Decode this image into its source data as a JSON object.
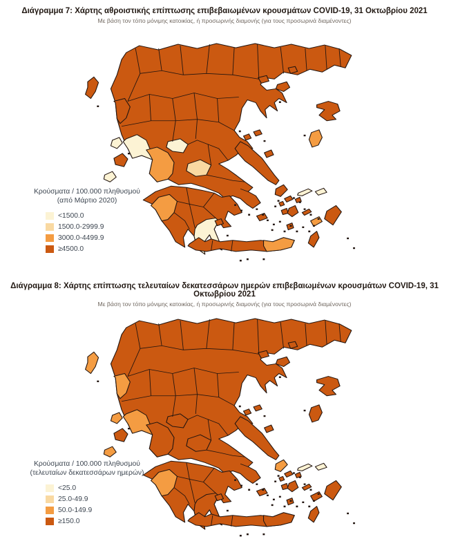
{
  "page": {
    "background": "#ffffff"
  },
  "palette": {
    "c1": "#FCF3D4",
    "c2": "#F9D9A2",
    "c3": "#F49C42",
    "c4": "#CB5911",
    "map_border": "#221510",
    "title_color": "#211812",
    "subtitle_color": "#6e655d",
    "legend_text_color": "#3c4550"
  },
  "sections": [
    {
      "id": "diagram7",
      "title": "Διάγραμμα 7: Χάρτης αθροιστικής επίπτωσης επιβεβαιωμένων κρουσμάτων COVID-19, 31 Οκτωβρίου 2021",
      "subtitle": "Με βάση τον τόπο μόνιμης κατοικίας, ή προσωρινής διαμονής (για τους προσωρινά διαμένοντες)",
      "legend": {
        "heading_line1": "Κρούσματα / 100.000 πληθυσμού",
        "heading_line2": "(από Μάρτιο 2020)",
        "items": [
          {
            "label": "<1500.0",
            "category": "c1"
          },
          {
            "label": "1500.0-2999.9",
            "category": "c2"
          },
          {
            "label": "3000.0-4499.9",
            "category": "c3"
          },
          {
            "label": "≥4500.0",
            "category": "c4"
          }
        ]
      },
      "default_category": "c4",
      "region_overrides": {
        "preveza-arta": "c1",
        "evrytania": "c1",
        "laconia": "c1",
        "lefkada": "c1",
        "zakynthos": "c1",
        "samos": "c1",
        "ikaria": "c1",
        "aitoloakarnania": "c3",
        "phocis": "c2",
        "ilia": "c3",
        "chios": "c3",
        "crete-east": "c3",
        "kos-kalymnos": "c3"
      }
    },
    {
      "id": "diagram8",
      "title": "Διάγραμμα 8: Χάρτης επίπτωσης τελευταίων δεκατεσσάρων ημερών επιβεβαιωμένων κρουσμάτων COVID-19, 31 Οκτωβρίου 2021",
      "subtitle": "Με βάση τον τόπο μόνιμης κατοικίας, ή προσωρινής διαμονής (για τους προσωρινά διαμένοντες)",
      "legend": {
        "heading_line1": "Κρούσματα / 100.000 πληθυσμού",
        "heading_line2": "(τελευταίων δεκατεσσάρων ημερών)",
        "items": [
          {
            "label": "<25.0",
            "category": "c1"
          },
          {
            "label": "25.0-49.9",
            "category": "c2"
          },
          {
            "label": "50.0-149.9",
            "category": "c3"
          },
          {
            "label": "≥150.0",
            "category": "c4"
          }
        ]
      },
      "default_category": "c4",
      "region_overrides": {
        "thesprotia": "c3",
        "preveza-arta": "c3",
        "corfu": "c3",
        "lefkada": "c3",
        "zakynthos": "c3",
        "ilia": "c3",
        "andros": "c3",
        "samos": "c1",
        "ikaria": "c1"
      }
    }
  ],
  "chart_data": [
    {
      "type": "heatmap",
      "subtype": "choropleth-map-of-greece",
      "title": "Διάγραμμα 7: Χάρτης αθροιστικής επίπτωσης επιβεβαιωμένων κρουσμάτων COVID-19, 31 Οκτωβρίου 2021",
      "subtitle": "Με βάση τον τόπο μόνιμης κατοικίας, ή προσωρινής διαμονής (για τους προσωρινά διαμένοντες)",
      "legend_title": "Κρούσματα / 100.000 πληθυσμού (από Μάρτιο 2020)",
      "classes": [
        {
          "range": "<1500.0",
          "color": "#FCF3D4"
        },
        {
          "range": "1500.0-2999.9",
          "color": "#F9D9A2"
        },
        {
          "range": "3000.0-4499.9",
          "color": "#F49C42"
        },
        {
          "range": "≥4500.0",
          "color": "#CB5911"
        }
      ],
      "legend_position": "lower-left",
      "reading": "Most regional units of Greece (north, Attica, most islands, western Crete) are in the highest class ≥4500.0; Preveza/Arta, Evrytania, Laconia, Lefkada, Zakynthos, Samos and Ikaria are in the lowest class <1500.0; Aitoloakarnania, Ilia, Chios, eastern Crete (Lasithi) and Kos/Kalymnos are 3000.0-4499.9."
    },
    {
      "type": "heatmap",
      "subtype": "choropleth-map-of-greece",
      "title": "Διάγραμμα 8: Χάρτης επίπτωσης τελευταίων δεκατεσσάρων ημερών επιβεβαιωμένων κρουσμάτων COVID-19, 31 Οκτωβρίου 2021",
      "subtitle": "Με βάση τον τόπο μόνιμης κατοικίας, ή προσωρινής διαμονής (για τους προσωρινά διαμένοντες)",
      "legend_title": "Κρούσματα / 100.000 πληθυσμού (τελευταίων δεκατεσσάρων ημερών)",
      "classes": [
        {
          "range": "<25.0",
          "color": "#FCF3D4"
        },
        {
          "range": "25.0-49.9",
          "color": "#F9D9A2"
        },
        {
          "range": "50.0-149.9",
          "color": "#F49C42"
        },
        {
          "range": "≥150.0",
          "color": "#CB5911"
        }
      ],
      "legend_position": "lower-left",
      "reading": "Nearly all of Greece including all of Crete is in the highest class ≥150.0; Corfu, Thesprotia, Preveza/Arta, Lefkada, Zakynthos, Ilia and Andros are 50.0-149.9; Samos and Ikaria are <25.0."
    }
  ]
}
